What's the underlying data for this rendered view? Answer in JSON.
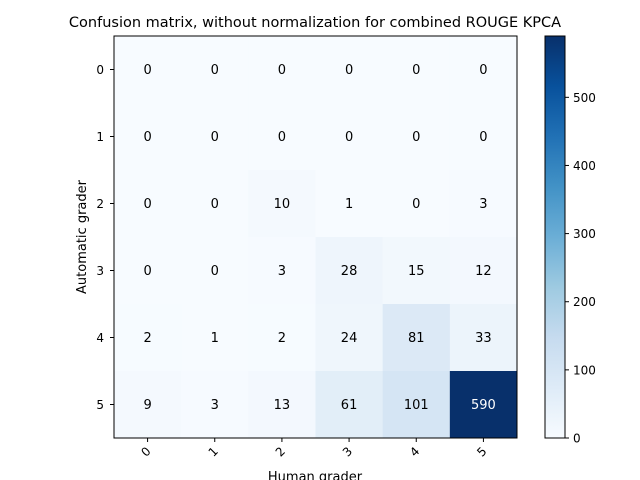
{
  "chart_data": {
    "type": "heatmap",
    "title": "Confusion matrix, without normalization for combined ROUGE KPCA",
    "xlabel": "Human grader",
    "ylabel": "Automatic grader",
    "x_categories": [
      "0",
      "1",
      "2",
      "3",
      "4",
      "5"
    ],
    "y_categories": [
      "0",
      "1",
      "2",
      "3",
      "4",
      "5"
    ],
    "values": [
      [
        0,
        0,
        0,
        0,
        0,
        0
      ],
      [
        0,
        0,
        0,
        0,
        0,
        0
      ],
      [
        0,
        0,
        10,
        1,
        0,
        3
      ],
      [
        0,
        0,
        3,
        28,
        15,
        12
      ],
      [
        2,
        1,
        2,
        24,
        81,
        33
      ],
      [
        9,
        3,
        13,
        61,
        101,
        590
      ]
    ],
    "colorbar": {
      "min": 0,
      "max": 590,
      "ticks": [
        0,
        100,
        200,
        300,
        400,
        500
      ],
      "colormap": "Blues"
    },
    "x_tick_rotation": "45°",
    "grid": false
  }
}
